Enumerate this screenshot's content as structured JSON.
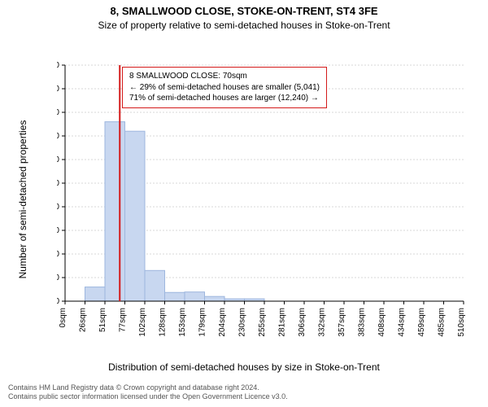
{
  "title": "8, SMALLWOOD CLOSE, STOKE-ON-TRENT, ST4 3FE",
  "subtitle": "Size of property relative to semi-detached houses in Stoke-on-Trent",
  "chart": {
    "type": "histogram",
    "ylabel": "Number of semi-detached properties",
    "xlabel": "Distribution of semi-detached houses by size in Stoke-on-Trent",
    "ylim": [
      0,
      10000
    ],
    "ytick_step": 1000,
    "yticks": [
      "0",
      "1000",
      "2000",
      "3000",
      "4000",
      "5000",
      "6000",
      "7000",
      "8000",
      "9000",
      "10000"
    ],
    "xticks": [
      "0sqm",
      "26sqm",
      "51sqm",
      "77sqm",
      "102sqm",
      "128sqm",
      "153sqm",
      "179sqm",
      "204sqm",
      "230sqm",
      "255sqm",
      "281sqm",
      "306sqm",
      "332sqm",
      "357sqm",
      "383sqm",
      "408sqm",
      "434sqm",
      "459sqm",
      "485sqm",
      "510sqm"
    ],
    "bar_values": [
      0,
      600,
      7600,
      7200,
      1300,
      370,
      390,
      200,
      100,
      100,
      0,
      0,
      0,
      0,
      0,
      0,
      0,
      0,
      0,
      0
    ],
    "bar_fill": "#c8d7f0",
    "bar_stroke": "#9db6de",
    "grid_color": "#b0b0b0",
    "axis_color": "#000000",
    "background_color": "#ffffff",
    "marker_line_x": 70,
    "marker_line_color": "#d41a1a",
    "title_fontsize": 13,
    "subtitle_fontsize": 12,
    "axis_label_fontsize": 12,
    "tick_fontsize": 10
  },
  "annotation": {
    "line1": "8 SMALLWOOD CLOSE: 70sqm",
    "line2": "← 29% of semi-detached houses are smaller (5,041)",
    "line3": "71% of semi-detached houses are larger (12,240) →",
    "border_color": "#d41a1a",
    "background": "#ffffff",
    "fontsize": 10
  },
  "copyright": {
    "line1": "Contains HM Land Registry data © Crown copyright and database right 2024.",
    "line2": "Contains public sector information licensed under the Open Government Licence v3.0.",
    "fontsize": 9,
    "color": "#555555"
  }
}
